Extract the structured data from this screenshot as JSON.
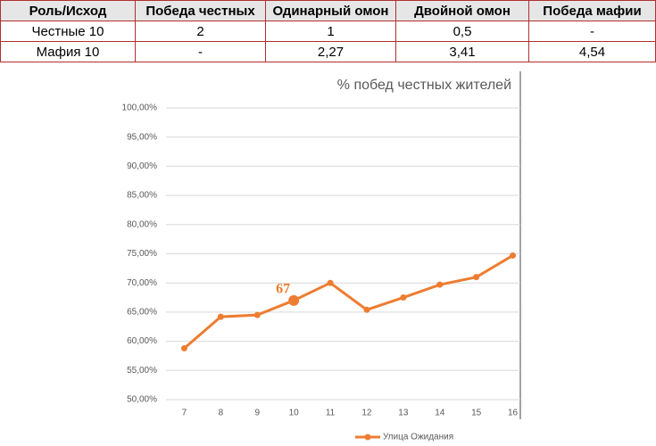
{
  "table": {
    "header": [
      "Роль/Исход",
      "Победа честных",
      "Одинарный омон",
      "Двойной омон",
      "Победа мафии"
    ],
    "rows": [
      [
        "Честные 10",
        "2",
        "1",
        "0,5",
        "-"
      ],
      [
        "Мафия 10",
        "-",
        "2,27",
        "3,41",
        "4,54"
      ]
    ]
  },
  "chart_data": {
    "type": "line",
    "title": "% побед честных жителей",
    "categories": [
      "7",
      "8",
      "9",
      "10",
      "11",
      "12",
      "13",
      "14",
      "15",
      "16"
    ],
    "series": [
      {
        "name": "Улица Ожидания",
        "color": "#ed7d31",
        "values": [
          58.8,
          64.2,
          64.5,
          67,
          70,
          65.4,
          67.5,
          69.7,
          71,
          74.7
        ],
        "value_labels": [
          null,
          null,
          null,
          "67",
          null,
          null,
          null,
          null,
          null,
          null
        ]
      }
    ],
    "ylim": [
      50,
      100
    ],
    "yticks": [
      {
        "value": 50,
        "label": "50,00%"
      },
      {
        "value": 55,
        "label": "55,00%"
      },
      {
        "value": 60,
        "label": "60,00%"
      },
      {
        "value": 65,
        "label": "65,00%"
      },
      {
        "value": 70,
        "label": "70,00%"
      },
      {
        "value": 75,
        "label": "75,00%"
      },
      {
        "value": 80,
        "label": "80,00%"
      },
      {
        "value": 85,
        "label": "85,00%"
      },
      {
        "value": 90,
        "label": "90,00%"
      },
      {
        "value": 95,
        "label": "95,00%"
      },
      {
        "value": 100,
        "label": "100,00%"
      }
    ],
    "grid": true,
    "legend": "bottom"
  }
}
